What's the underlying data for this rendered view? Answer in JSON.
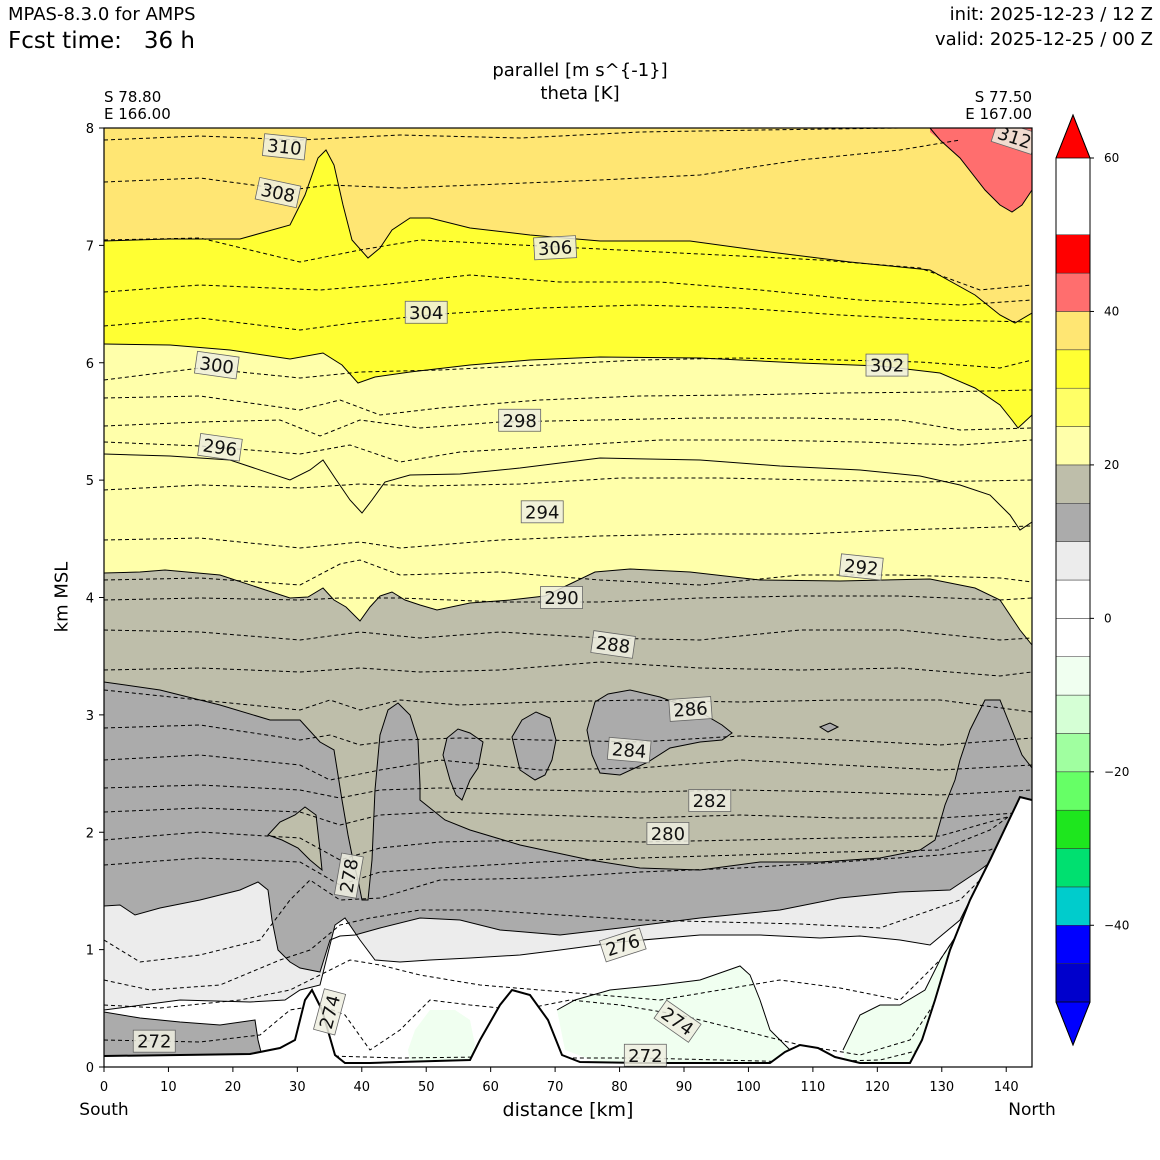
{
  "header": {
    "model": "MPAS-8.3.0 for AMPS",
    "fcst": "Fcst time:   36 h",
    "init": "init: 2025-12-23 / 12 Z",
    "valid": "valid: 2025-12-25 / 00 Z"
  },
  "chart_data": {
    "type": "contour",
    "title_line1": "parallel [m s^{-1}]",
    "title_line2": "theta [K]",
    "left_endpoint": {
      "lat": "S 78.80",
      "lon": "E 166.00"
    },
    "right_endpoint": {
      "lat": "S 77.50",
      "lon": "E 167.00"
    },
    "xlabel": "distance [km]",
    "ylabel": "km MSL",
    "xlim": [
      0,
      144
    ],
    "ylim": [
      0,
      8
    ],
    "xticks": [
      "0",
      "10",
      "20",
      "30",
      "40",
      "50",
      "60",
      "70",
      "80",
      "90",
      "100",
      "110",
      "120",
      "130",
      "140"
    ],
    "xtick_values": [
      0,
      10,
      20,
      30,
      40,
      50,
      60,
      70,
      80,
      90,
      100,
      110,
      120,
      130,
      140
    ],
    "yticks": [
      "0",
      "1",
      "2",
      "3",
      "4",
      "5",
      "6",
      "7",
      "8"
    ],
    "ytick_values": [
      0,
      1,
      2,
      3,
      4,
      5,
      6,
      7,
      8
    ],
    "x_end_labels": {
      "left": "South",
      "right": "North"
    },
    "theta_contour_labels": [
      {
        "text": "310",
        "x": 28,
        "y": 7.84,
        "rot": 6
      },
      {
        "text": "308",
        "x": 27,
        "y": 7.45,
        "rot": 12
      },
      {
        "text": "306",
        "x": 70,
        "y": 6.98,
        "rot": -3
      },
      {
        "text": "304",
        "x": 50,
        "y": 6.43,
        "rot": 0
      },
      {
        "text": "300",
        "x": 17.5,
        "y": 5.98,
        "rot": 8
      },
      {
        "text": "302",
        "x": 121.5,
        "y": 5.98,
        "rot": 0
      },
      {
        "text": "298",
        "x": 64.5,
        "y": 5.51,
        "rot": 0
      },
      {
        "text": "296",
        "x": 18,
        "y": 5.28,
        "rot": 8
      },
      {
        "text": "294",
        "x": 68,
        "y": 4.73,
        "rot": 0
      },
      {
        "text": "292",
        "x": 117.5,
        "y": 4.26,
        "rot": 6
      },
      {
        "text": "290",
        "x": 71,
        "y": 4.0,
        "rot": 0
      },
      {
        "text": "288",
        "x": 79,
        "y": 3.6,
        "rot": 8
      },
      {
        "text": "286",
        "x": 91,
        "y": 3.05,
        "rot": -4
      },
      {
        "text": "284",
        "x": 81.5,
        "y": 2.7,
        "rot": 5
      },
      {
        "text": "282",
        "x": 94,
        "y": 2.27,
        "rot": 0
      },
      {
        "text": "280",
        "x": 87.5,
        "y": 1.99,
        "rot": 0
      },
      {
        "text": "278",
        "x": 38,
        "y": 1.63,
        "rot": -80
      },
      {
        "text": "276",
        "x": 80.5,
        "y": 1.04,
        "rot": -18
      },
      {
        "text": "274",
        "x": 35,
        "y": 0.47,
        "rot": -75
      },
      {
        "text": "274",
        "x": 89,
        "y": 0.39,
        "rot": 35
      },
      {
        "text": "272",
        "x": 7.8,
        "y": 0.22,
        "rot": 0
      },
      {
        "text": "272",
        "x": 84,
        "y": 0.1,
        "rot": 0
      },
      {
        "text": "312",
        "x": 141.3,
        "y": 7.92,
        "rot": 18
      }
    ],
    "colorbar": {
      "variable": "parallel wind",
      "units": "m s^-1",
      "vmin": -50,
      "vmax": 60,
      "levels": [
        -50,
        -45,
        -40,
        -35,
        -30,
        -25,
        -20,
        -15,
        -10,
        -5,
        0,
        5,
        10,
        15,
        20,
        25,
        30,
        35,
        40,
        45,
        50,
        55,
        60
      ],
      "colors": [
        "#0000cc",
        "#0000ff",
        "#00cccc",
        "#00e070",
        "#1ee61e",
        "#66ff66",
        "#a0ffa0",
        "#d5ffd5",
        "#f0fff0",
        "#ffffff",
        "#ffffff",
        "#ececec",
        "#ababab",
        "#bebeaa",
        "#ffffaa",
        "#ffff66",
        "#ffff33",
        "#ffe673",
        "#ff6e6e",
        "#ff0000"
      ],
      "under_color": "#0000ff",
      "over_color": "#ff0000",
      "tick_labels": [
        "60",
        "40",
        "20",
        "0",
        "−20",
        "−40"
      ],
      "tick_values": [
        60,
        40,
        20,
        0,
        -20,
        -40
      ]
    },
    "shading_colors": {
      "grey_mid": "#ababab",
      "grey_olive": "#bebeaa",
      "light_yellow": "#ffffaa",
      "yellow": "#ffff33",
      "gold": "#ffe673",
      "light_grey": "#ececec",
      "pale_green": "#f0fff0",
      "salmon": "#ff6e6e"
    }
  }
}
